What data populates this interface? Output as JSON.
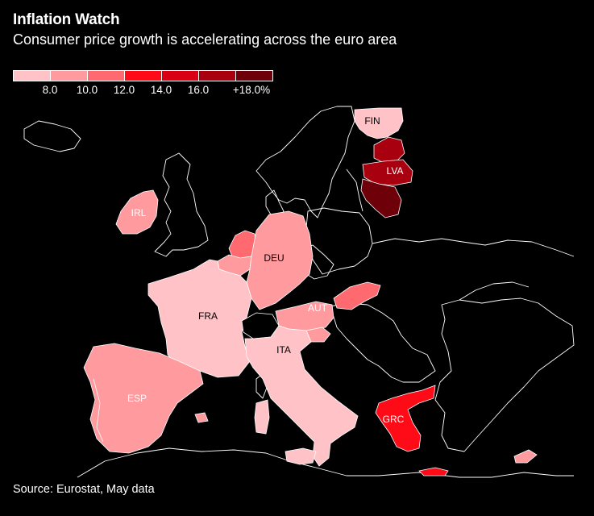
{
  "header": {
    "title": "Inflation Watch",
    "subtitle": "Consumer price growth is accelerating across the euro area"
  },
  "legend": {
    "colors": [
      "#ffc2c6",
      "#ff9a9f",
      "#ff6a70",
      "#ff0a17",
      "#d80012",
      "#a8000e",
      "#6e0009"
    ],
    "labels": [
      "8.0",
      "10.0",
      "12.0",
      "14.0",
      "16.0",
      "+18.0%"
    ]
  },
  "map": {
    "countries": [
      {
        "code": "FIN",
        "label": "FIN"
      },
      {
        "code": "LVA",
        "label": "LVA"
      },
      {
        "code": "IRL",
        "label": "IRL"
      },
      {
        "code": "DEU",
        "label": "DEU"
      },
      {
        "code": "FRA",
        "label": "FRA"
      },
      {
        "code": "AUT",
        "label": "AUT"
      },
      {
        "code": "ITA",
        "label": "ITA"
      },
      {
        "code": "ESP",
        "label": "ESP"
      },
      {
        "code": "GRC",
        "label": "GRC"
      }
    ]
  },
  "footer": {
    "source": "Source: Eurostat, May data"
  }
}
